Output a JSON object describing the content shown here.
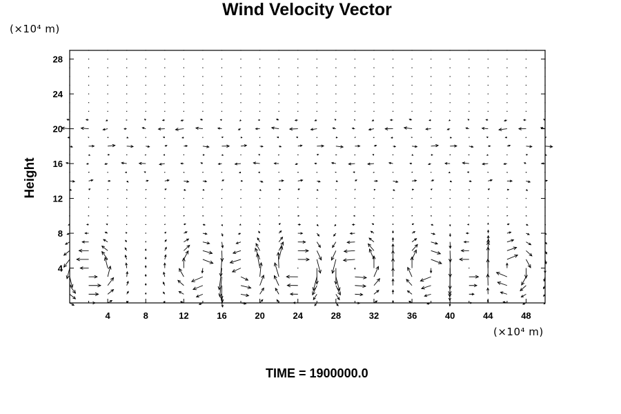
{
  "chart_data": {
    "type": "vector_field",
    "title": "Wind Velocity Vector",
    "xlabel": "",
    "ylabel": "Height",
    "x_unit": "(×10⁴ m)",
    "y_unit": "(×10⁴ m)",
    "xlim": [
      0,
      50
    ],
    "ylim": [
      0,
      29
    ],
    "xticks": [
      4,
      8,
      12,
      16,
      20,
      24,
      28,
      32,
      36,
      40,
      44,
      48
    ],
    "yticks": [
      4,
      8,
      12,
      16,
      20,
      24,
      28
    ],
    "grid": false,
    "vector_grid": {
      "x_start": 0,
      "x_step": 2,
      "x_count": 26,
      "y_start": 0,
      "y_step": 1,
      "y_count": 30
    },
    "flow": {
      "vortices": [
        {
          "x": 2,
          "y": 3.5,
          "sign": 1
        },
        {
          "x": 14,
          "y": 4,
          "sign": -1
        },
        {
          "x": 18,
          "y": 3.5,
          "sign": 1
        },
        {
          "x": 24,
          "y": 4,
          "sign": -1
        },
        {
          "x": 30,
          "y": 4,
          "sign": 1
        },
        {
          "x": 38,
          "y": 4,
          "sign": -1
        },
        {
          "x": 42,
          "y": 4,
          "sign": 1
        },
        {
          "x": 46,
          "y": 4,
          "sign": -1
        }
      ],
      "jet_layers": [
        {
          "y": 20,
          "u": -1.0
        },
        {
          "y": 18,
          "u": 0.9
        },
        {
          "y": 16,
          "u": -0.8
        },
        {
          "y": 14,
          "u": 0.6
        }
      ]
    },
    "annotation": {
      "label": "TIME = ",
      "value": "1900000.0"
    }
  }
}
